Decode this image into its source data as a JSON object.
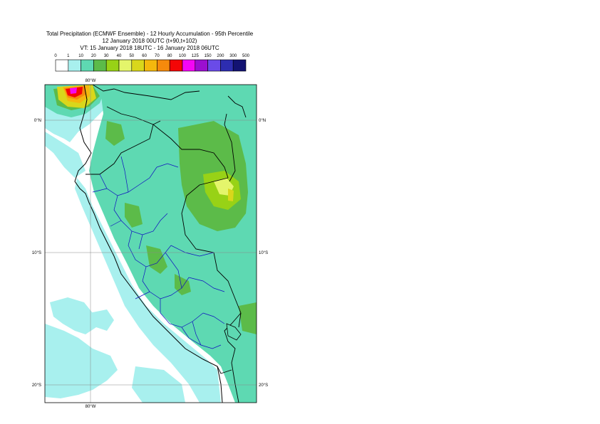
{
  "title": {
    "line1": "Total Precipitation (ECMWF Ensemble) - 12 Hourly Accumulation - 95th Percentile",
    "line2": "12 January 2018 00UTC (t+90,t+102)",
    "line3": "VT: 15 January 2018 18UTC - 16 January 2018 06UTC"
  },
  "legend": {
    "thresholds": [
      "0",
      "1",
      "10",
      "20",
      "30",
      "40",
      "50",
      "60",
      "70",
      "80",
      "100",
      "125",
      "150",
      "200",
      "300",
      "500"
    ],
    "colors": [
      "#ffffff",
      "#a8f0ee",
      "#5ed9b2",
      "#5cbb49",
      "#98d216",
      "#e4f56b",
      "#d9d71b",
      "#f4b80d",
      "#f58a0c",
      "#f40606",
      "#f406f4",
      "#9b0fd0",
      "#6a4be8",
      "#2d2db0",
      "#131373"
    ]
  },
  "map": {
    "lon_labels": {
      "top": "80°W",
      "bottom": "80°W"
    },
    "lat_labels": [
      {
        "left": "0°N",
        "right": "0°N"
      },
      {
        "left": "10°S",
        "right": "10°S"
      },
      {
        "left": "20°S",
        "right": "20°S"
      }
    ],
    "colors": {
      "sea": "#ffffff",
      "coast": "#000000",
      "admin": "#1010c0",
      "grid": "#888888"
    }
  }
}
